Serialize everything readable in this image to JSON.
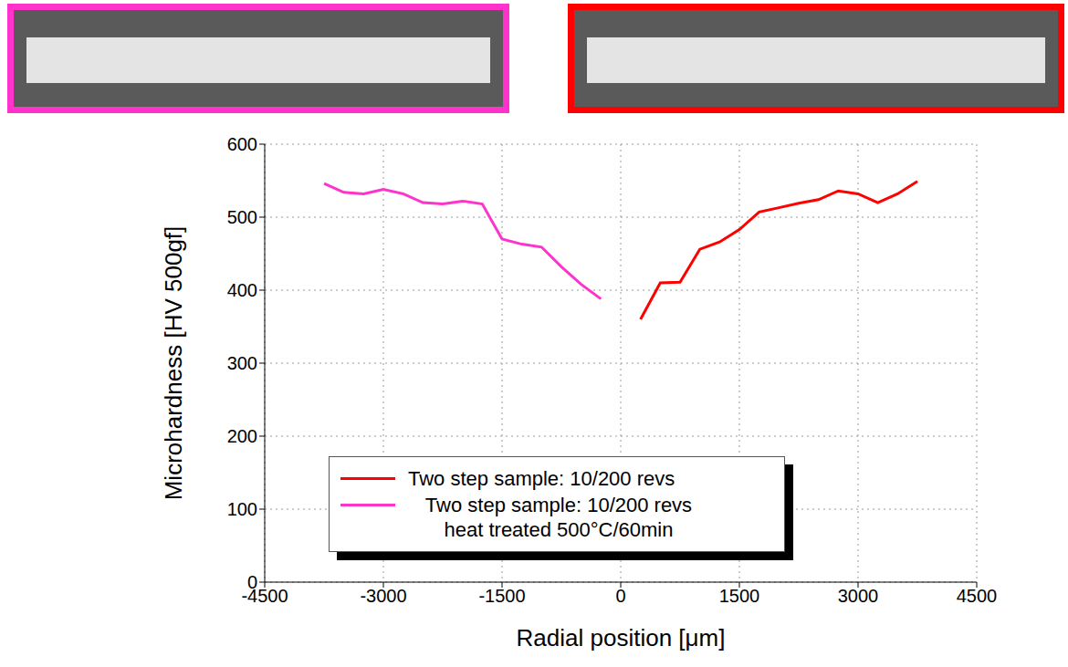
{
  "chart_data": {
    "type": "line",
    "x_label": "Radial position [μm]",
    "y_label": "Microhardness [HV 500gf]",
    "xlim": [
      -4500,
      4500
    ],
    "xticks": [
      -4500,
      -3000,
      -1500,
      0,
      1500,
      3000,
      4500
    ],
    "ylim": [
      0,
      600
    ],
    "yticks": [
      0,
      100,
      200,
      300,
      400,
      500,
      600
    ],
    "grid": true,
    "legend": "bottom",
    "series": [
      {
        "name": "Two step sample: 10/200 revs",
        "color": "#ff0000",
        "x": [
          250,
          500,
          750,
          1000,
          1250,
          1500,
          1750,
          2000,
          2250,
          2500,
          2750,
          3000,
          3250,
          3500,
          3750
        ],
        "values": [
          360,
          410,
          411,
          456,
          466,
          483,
          507,
          513,
          519,
          524,
          536,
          532,
          520,
          532,
          549
        ]
      },
      {
        "name": "Two step sample: 10/200 revs heat treated 500°C/60min",
        "color": "#ff33cc",
        "x": [
          -3750,
          -3500,
          -3250,
          -3000,
          -2750,
          -2500,
          -2250,
          -2000,
          -1750,
          -1500,
          -1250,
          -1000,
          -750,
          -500,
          -250
        ],
        "values": [
          546,
          534,
          532,
          538,
          532,
          520,
          518,
          522,
          518,
          470,
          463,
          459,
          432,
          408,
          388
        ]
      }
    ]
  }
}
